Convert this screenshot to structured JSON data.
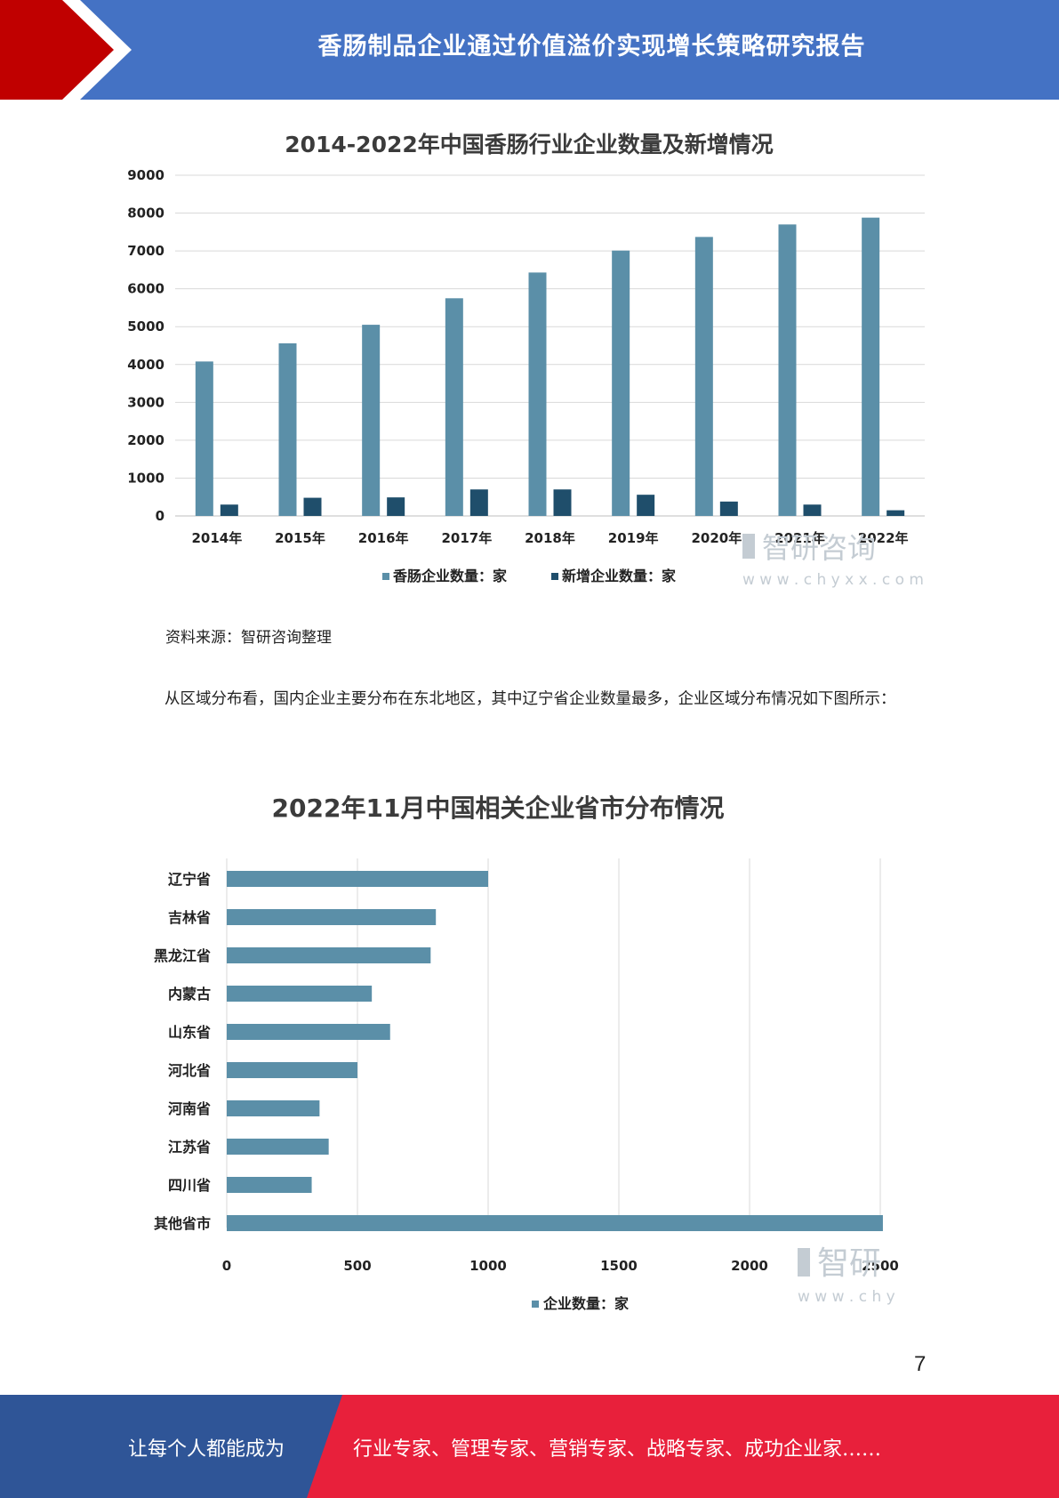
{
  "header": {
    "title": "香肠制品企业通过价值溢价实现增长策略研究报告",
    "colors": {
      "band": "#4472c4",
      "chevron": "#c00000"
    }
  },
  "chart1": {
    "chart_data": {
      "type": "bar",
      "title": "2014-2022年中国香肠行业企业数量及新增情况",
      "categories": [
        "2014年",
        "2015年",
        "2016年",
        "2017年",
        "2018年",
        "2019年",
        "2020年",
        "2021年",
        "2022年"
      ],
      "series": [
        {
          "name": "香肠企业数量：家",
          "color": "#5b8fa8",
          "values": [
            4080,
            4560,
            5050,
            5750,
            6430,
            7010,
            7370,
            7700,
            7880
          ]
        },
        {
          "name": "新增企业数量：家",
          "color": "#1f4e6b",
          "values": [
            300,
            480,
            490,
            700,
            700,
            560,
            380,
            300,
            150
          ]
        }
      ],
      "ylim": [
        0,
        9000
      ],
      "yticks": [
        0,
        1000,
        2000,
        3000,
        4000,
        5000,
        6000,
        7000,
        8000,
        9000
      ],
      "grid": true,
      "legend": "bottom"
    },
    "watermark": {
      "logo": "智研咨询",
      "url": "w w w . c h y x x . c o m"
    }
  },
  "source_note": "资料来源：智研咨询整理",
  "paragraph": "从区域分布看，国内企业主要分布在东北地区，其中辽宁省企业数量最多，企业区域分布情况如下图所示：",
  "chart2": {
    "chart_data": {
      "type": "bar",
      "orientation": "horizontal",
      "title": "2022年11月中国相关企业省市分布情况",
      "categories": [
        "辽宁省",
        "吉林省",
        "黑龙江省",
        "内蒙古",
        "山东省",
        "河北省",
        "河南省",
        "江苏省",
        "四川省",
        "其他省市"
      ],
      "series": [
        {
          "name": "企业数量：家",
          "color": "#5b8fa8",
          "values": [
            1000,
            800,
            780,
            555,
            625,
            500,
            355,
            390,
            325,
            2510
          ]
        }
      ],
      "xlim": [
        0,
        2500
      ],
      "xticks": [
        0,
        500,
        1000,
        1500,
        2000,
        2500
      ],
      "grid": true,
      "legend": "bottom"
    },
    "watermark": {
      "logo": "智研",
      "url": "w w w . c h y"
    }
  },
  "page_number": "7",
  "footer": {
    "left_text": "让每个人都能成为",
    "right_text": "行业专家、管理专家、营销专家、战略专家、成功企业家……",
    "colors": {
      "left": "#2f5597",
      "right": "#e8203b"
    }
  }
}
